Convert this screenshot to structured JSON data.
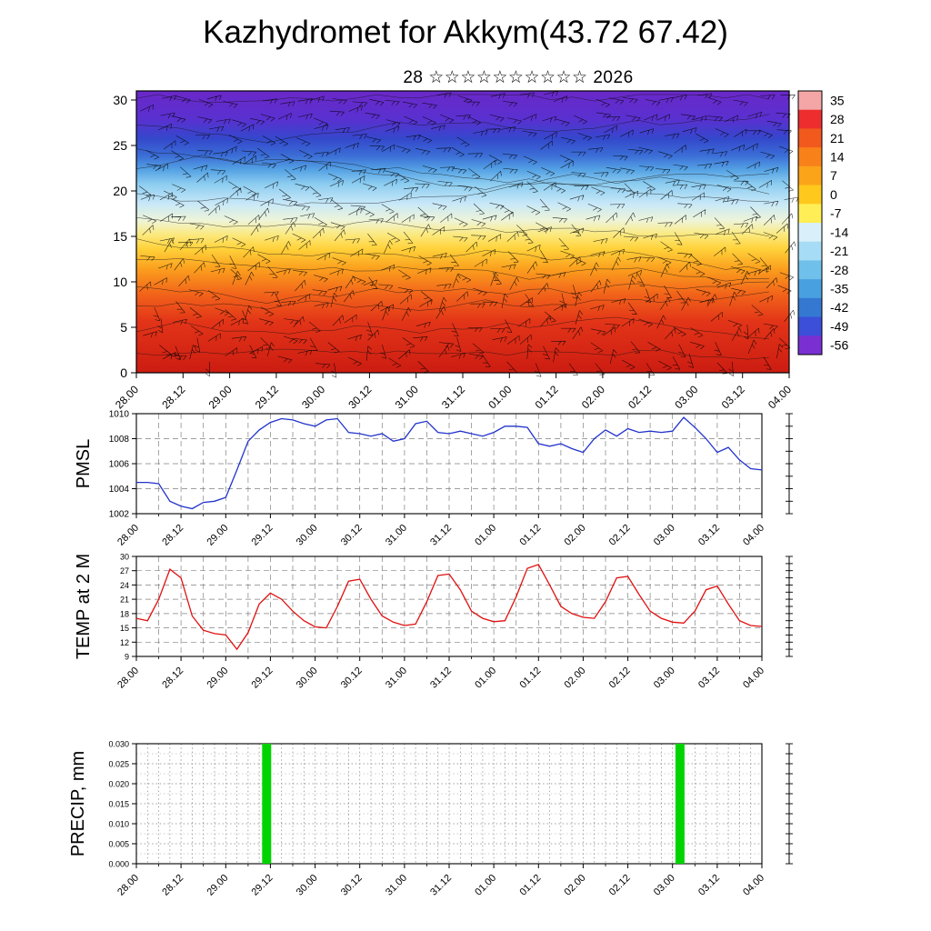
{
  "title": "Kazhydromet for Akkym(43.72 67.42)",
  "subtitle": "28 ☆☆☆☆☆☆☆☆☆☆ 2026",
  "time_axis": {
    "labels": [
      "28.00",
      "28.12",
      "29.00",
      "29.12",
      "30.00",
      "30.12",
      "31.00",
      "31.12",
      "01.00",
      "01.12",
      "02.00",
      "02.12",
      "03.00",
      "03.12",
      "04.00"
    ],
    "major_step_hours": 12,
    "span_hours": 168
  },
  "chart_data": [
    {
      "id": "temperature_cross_section",
      "type": "heatmap",
      "description": "Time-height temperature cross-section with wind barbs overlay",
      "yticks": [
        "0",
        "5",
        "10",
        "15",
        "20",
        "25",
        "30"
      ],
      "ylim": [
        0,
        31
      ],
      "overlay": "wind-barbs",
      "colorbar": {
        "labels": [
          "35",
          "28",
          "21",
          "14",
          "7",
          "0",
          "-7",
          "-14",
          "-21",
          "-28",
          "-35",
          "-42",
          "-49",
          "-56"
        ],
        "colors": [
          "#f4a6a6",
          "#ee2e2e",
          "#f2591d",
          "#f8811a",
          "#fba41a",
          "#ffc81c",
          "#ffee55",
          "#d9f0fb",
          "#a6dcf5",
          "#6fc0ea",
          "#48a0e0",
          "#3478d2",
          "#3b4fd8",
          "#7a2fd2"
        ]
      },
      "gradient_stops": [
        {
          "o": 0,
          "c": "#6a28c8"
        },
        {
          "o": 0.1,
          "c": "#5a30d0"
        },
        {
          "o": 0.17,
          "c": "#3448cc"
        },
        {
          "o": 0.23,
          "c": "#3b6ed6"
        },
        {
          "o": 0.28,
          "c": "#55a2e4"
        },
        {
          "o": 0.33,
          "c": "#8cccf0"
        },
        {
          "o": 0.4,
          "c": "#c8e8f8"
        },
        {
          "o": 0.46,
          "c": "#eef4d8"
        },
        {
          "o": 0.51,
          "c": "#fbe97e"
        },
        {
          "o": 0.56,
          "c": "#ffd23a"
        },
        {
          "o": 0.63,
          "c": "#fba01e"
        },
        {
          "o": 0.72,
          "c": "#f2641a"
        },
        {
          "o": 0.82,
          "c": "#e23418"
        },
        {
          "o": 1,
          "c": "#cc1c12"
        }
      ]
    },
    {
      "id": "pmsl",
      "type": "line",
      "label": "PMSL",
      "color": "#2233cc",
      "ylim": [
        1002,
        1010
      ],
      "yticks": [
        "1002",
        "1004",
        "1006",
        "1008",
        "1010"
      ],
      "x_start": "28.00",
      "step_hours": 3,
      "values": [
        1004.5,
        1004.5,
        1004.4,
        1003,
        1002.6,
        1002.4,
        1002.9,
        1003,
        1003.3,
        1005.5,
        1007.8,
        1008.7,
        1009.3,
        1009.6,
        1009.5,
        1009.2,
        1009,
        1009.5,
        1009.6,
        1008.5,
        1008.4,
        1008.2,
        1008.4,
        1007.8,
        1008,
        1009.2,
        1009.4,
        1008.5,
        1008.4,
        1008.6,
        1008.4,
        1008.2,
        1008.5,
        1009,
        1009,
        1008.9,
        1007.6,
        1007.4,
        1007.6,
        1007.2,
        1006.9,
        1008,
        1008.7,
        1008.2,
        1008.8,
        1008.5,
        1008.6,
        1008.5,
        1008.6,
        1009.7,
        1008.9,
        1008,
        1006.9,
        1007.3,
        1006.3,
        1005.6,
        1005.5
      ]
    },
    {
      "id": "temp_2m",
      "type": "line",
      "label": "TEMP at 2 M",
      "color": "#e01010",
      "ylim": [
        9,
        30
      ],
      "yticks": [
        "9",
        "12",
        "15",
        "18",
        "21",
        "24",
        "27",
        "30"
      ],
      "x_start": "28.00",
      "step_hours": 3,
      "values": [
        17,
        16.5,
        21,
        27.3,
        25.5,
        17.5,
        14.5,
        13.8,
        13.5,
        10.5,
        14,
        20,
        22.3,
        21,
        18.5,
        16.5,
        15.2,
        15,
        19.5,
        24.8,
        25.2,
        21,
        17.5,
        16.2,
        15.5,
        15.8,
        20.5,
        26,
        26.3,
        23,
        18.5,
        17,
        16.3,
        16.5,
        21.5,
        27.5,
        28.3,
        24,
        19.5,
        18,
        17.2,
        17,
        20.5,
        25.5,
        25.8,
        22,
        18.5,
        17,
        16.2,
        16,
        18.5,
        23,
        23.8,
        20,
        16.5,
        15.5,
        15.3
      ]
    },
    {
      "id": "precip",
      "type": "bar",
      "label": "PRECIP, mm",
      "color": "#00d400",
      "ylim": [
        0,
        0.03
      ],
      "yticks": [
        "0.000",
        "0.005",
        "0.010",
        "0.015",
        "0.020",
        "0.025",
        "0.030"
      ],
      "bars": [
        {
          "time": "29.11",
          "value": 0.03
        },
        {
          "time": "03.02",
          "value": 0.03
        }
      ]
    }
  ]
}
